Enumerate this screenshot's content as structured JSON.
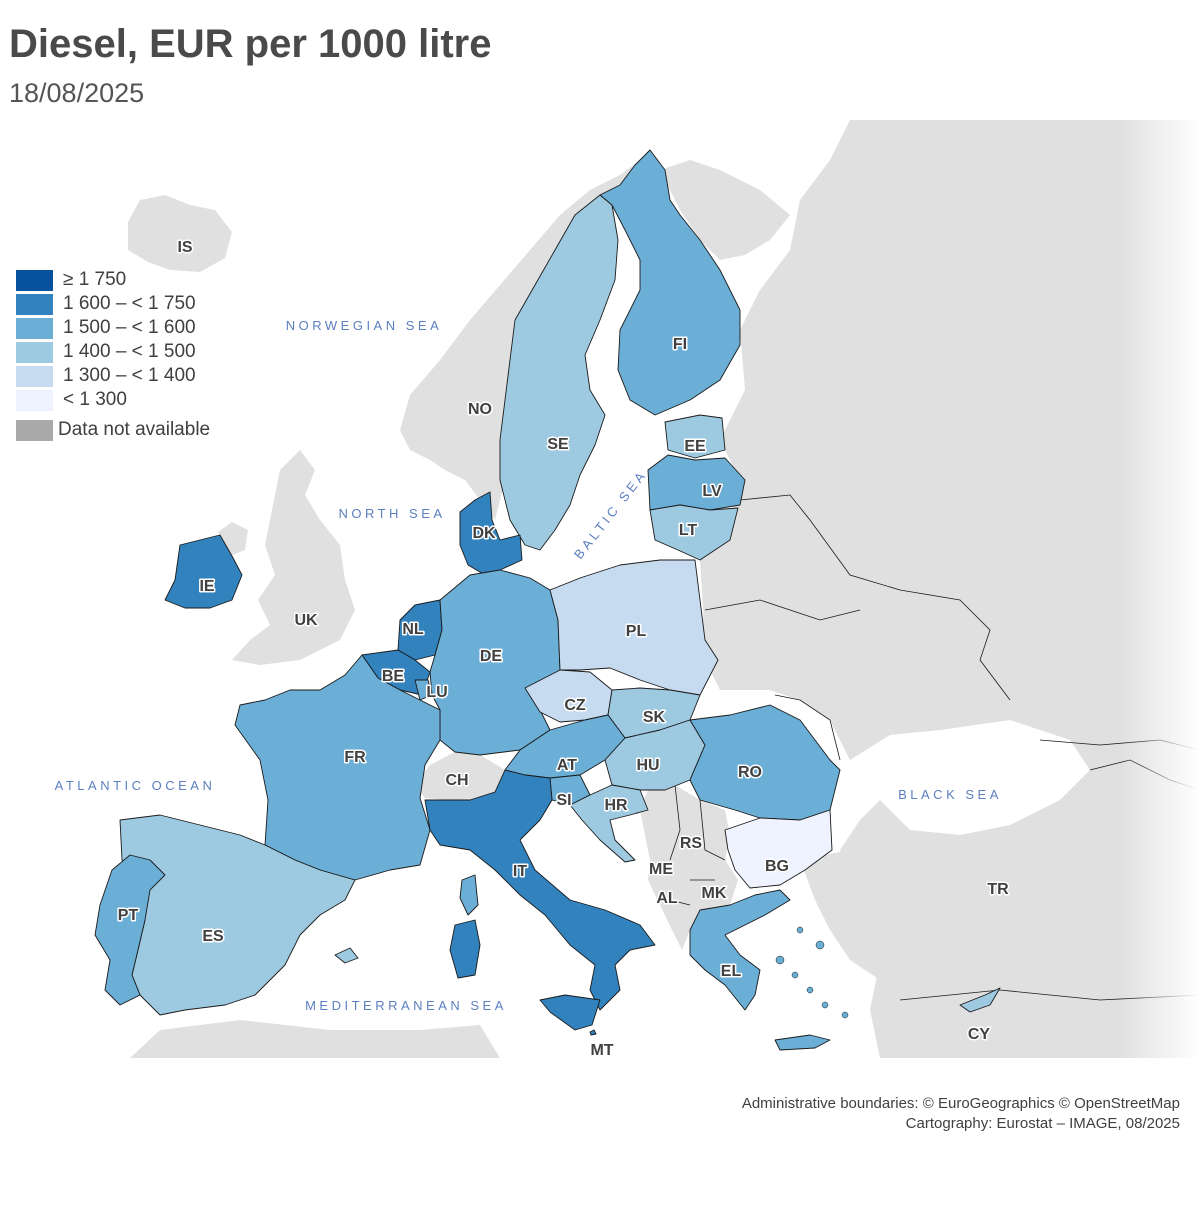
{
  "title": "Diesel, EUR per 1000 litre",
  "date": "18/08/2025",
  "colors": {
    "background_land": "#e0e0e0",
    "sea": "#ffffff",
    "border": "#1a1a1a",
    "sea_label": "#5c7fc0"
  },
  "legend": [
    {
      "label": "≥ 1 750",
      "color": "#08519c"
    },
    {
      "label": "1 600 – < 1 750",
      "color": "#3182bd"
    },
    {
      "label": "1 500 – < 1 600",
      "color": "#6baed6"
    },
    {
      "label": "1 400 – < 1 500",
      "color": "#9ecae1"
    },
    {
      "label": "1 300 – < 1 400",
      "color": "#c6dbef"
    },
    {
      "label": "< 1 300",
      "color": "#eff3ff"
    },
    {
      "label": "Data not available",
      "color": "#a9a9a9"
    }
  ],
  "countries": {
    "IS": {
      "label": "IS",
      "class": "outside"
    },
    "NO": {
      "label": "NO",
      "class": "outside"
    },
    "SE": {
      "label": "SE",
      "class": "1 400 – < 1 500"
    },
    "FI": {
      "label": "FI",
      "class": "1 500 – < 1 600"
    },
    "EE": {
      "label": "EE",
      "class": "1 400 – < 1 500"
    },
    "LV": {
      "label": "LV",
      "class": "1 500 – < 1 600"
    },
    "LT": {
      "label": "LT",
      "class": "1 400 – < 1 500"
    },
    "DK": {
      "label": "DK",
      "class": "1 600 – < 1 750"
    },
    "IE": {
      "label": "IE",
      "class": "1 600 – < 1 750"
    },
    "UK": {
      "label": "UK",
      "class": "outside"
    },
    "NL": {
      "label": "NL",
      "class": "1 600 – < 1 750"
    },
    "BE": {
      "label": "BE",
      "class": "1 600 – < 1 750"
    },
    "LU": {
      "label": "LU",
      "class": "1 500 – < 1 600"
    },
    "DE": {
      "label": "DE",
      "class": "1 500 – < 1 600"
    },
    "PL": {
      "label": "PL",
      "class": "1 300 – < 1 400"
    },
    "CZ": {
      "label": "CZ",
      "class": "1 300 – < 1 400"
    },
    "SK": {
      "label": "SK",
      "class": "1 400 – < 1 500"
    },
    "AT": {
      "label": "AT",
      "class": "1 500 – < 1 600"
    },
    "HU": {
      "label": "HU",
      "class": "1 400 – < 1 500"
    },
    "RO": {
      "label": "RO",
      "class": "1 500 – < 1 600"
    },
    "FR": {
      "label": "FR",
      "class": "1 500 – < 1 600"
    },
    "CH": {
      "label": "CH",
      "class": "outside"
    },
    "SI": {
      "label": "SI",
      "class": "1 500 – < 1 600"
    },
    "HR": {
      "label": "HR",
      "class": "1 400 – < 1 500"
    },
    "RS": {
      "label": "RS",
      "class": "outside"
    },
    "IT": {
      "label": "IT",
      "class": "1 600 – < 1 750"
    },
    "ME": {
      "label": "ME",
      "class": "outside"
    },
    "AL": {
      "label": "AL",
      "class": "outside"
    },
    "MK": {
      "label": "MK",
      "class": "outside"
    },
    "BG": {
      "label": "BG",
      "class": "< 1 300"
    },
    "TR": {
      "label": "TR",
      "class": "outside"
    },
    "PT": {
      "label": "PT",
      "class": "1 500 – < 1 600"
    },
    "ES": {
      "label": "ES",
      "class": "1 400 – < 1 500"
    },
    "EL": {
      "label": "EL",
      "class": "1 500 – < 1 600"
    },
    "MT": {
      "label": "MT",
      "class": "1 600 – < 1 750"
    },
    "CY": {
      "label": "CY",
      "class": "1 400 – < 1 500"
    }
  },
  "seas": {
    "norwegian": "NORWEGIAN SEA",
    "north": "NORTH SEA",
    "baltic": "BALTIC SEA",
    "atlantic": "ATLANTIC OCEAN",
    "black": "BLACK SEA",
    "mediterranean": "MEDITERRANEAN SEA"
  },
  "credits": {
    "line1": "Administrative boundaries: © EuroGeographics © OpenStreetMap",
    "line2": "Cartography: Eurostat – IMAGE, 08/2025"
  }
}
